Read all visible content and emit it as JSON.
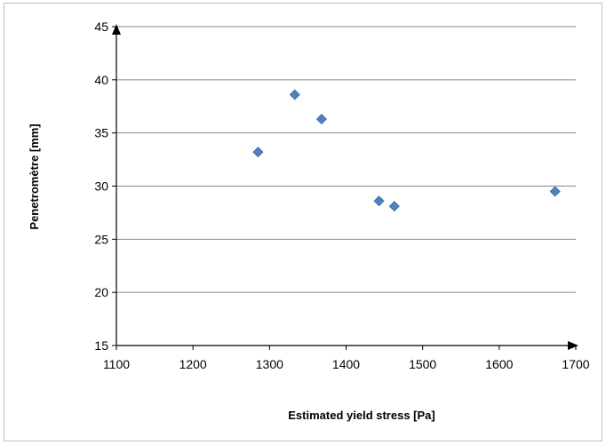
{
  "chart_data": {
    "type": "scatter",
    "title": "",
    "xlabel": "Estimated yield stress [Pa]",
    "ylabel": "Penetromètre [mm]",
    "xlim": [
      1100,
      1700
    ],
    "ylim": [
      15,
      45
    ],
    "x_ticks": [
      1100,
      1200,
      1300,
      1400,
      1500,
      1600,
      1700
    ],
    "y_ticks": [
      15,
      20,
      25,
      30,
      35,
      40,
      45
    ],
    "grid": "horizontal",
    "legend": "none",
    "marker": "diamond",
    "colors": {
      "marker": "#4f81bd",
      "marker_edge": "#3a6ea5",
      "grid": "#868686",
      "axis": "#000000"
    },
    "series": [
      {
        "x": [
          1285,
          1333,
          1368,
          1443,
          1463,
          1673
        ],
        "y": [
          33.2,
          38.6,
          36.3,
          28.6,
          28.1,
          29.5
        ]
      }
    ]
  }
}
